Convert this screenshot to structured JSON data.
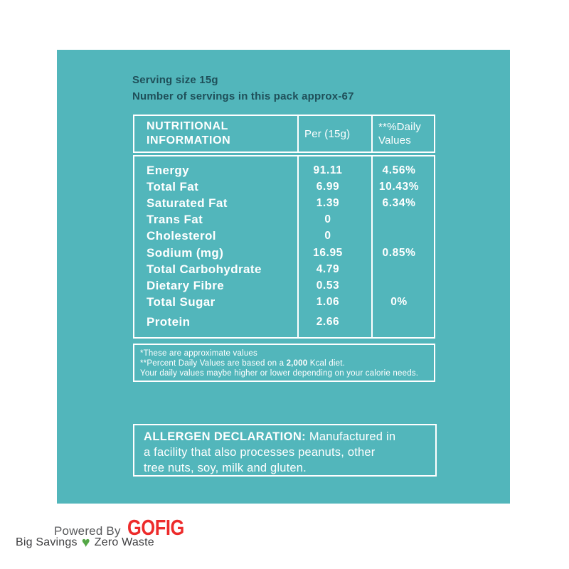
{
  "colors": {
    "panel_bg": "#52b6bb",
    "serving_text": "#1f4f59",
    "table_text": "#ffffff",
    "logo_red": "#ed2b2b",
    "powered_gray": "#58595b",
    "tagline_gray": "#3f3f41",
    "heart_green": "#54a746"
  },
  "serving": {
    "line1": "Serving size 15g",
    "line2": "Number of servings in this pack approx-67"
  },
  "table": {
    "header": {
      "col1": "NUTRITIONAL INFORMATION",
      "col2": "Per (15g)",
      "col3": "**%Daily Values"
    },
    "rows": [
      {
        "label": "Energy",
        "per": "91.11",
        "dv": "4.56%"
      },
      {
        "label": "Total Fat",
        "per": "6.99",
        "dv": "10.43%"
      },
      {
        "label": "Saturated Fat",
        "per": "1.39",
        "dv": "6.34%"
      },
      {
        "label": "Trans Fat",
        "per": "0",
        "dv": ""
      },
      {
        "label": "Cholesterol",
        "per": "0",
        "dv": ""
      },
      {
        "label": "Sodium (mg)",
        "per": "16.95",
        "dv": "0.85%"
      },
      {
        "label": "Total Carbohydrate",
        "per": "4.79",
        "dv": ""
      },
      {
        "label": "Dietary Fibre",
        "per": "0.53",
        "dv": ""
      },
      {
        "label": "Total Sugar",
        "per": "1.06",
        "dv": "0%"
      },
      {
        "label": "Protein",
        "per": "2.66",
        "dv": ""
      }
    ]
  },
  "footnotes": {
    "line1": "*These are approximate values",
    "line2_prefix": "**Percent Daily Values are based on a ",
    "line2_bold": "2,000",
    "line2_suffix": " Kcal diet.",
    "line3": "Your daily values maybe higher or lower depending on your calorie needs."
  },
  "allergen": {
    "title": "ALLERGEN DECLARATION:",
    "line1_rest": " Manufactured in",
    "line2": "a facility that also processes peanuts, other",
    "line3": "tree nuts, soy, milk and gluten."
  },
  "branding": {
    "powered_by": "Powered By",
    "logo": "GOFIG",
    "tagline_left": "Big Savings",
    "heart_glyph": "♥",
    "tagline_right": "Zero Waste"
  }
}
